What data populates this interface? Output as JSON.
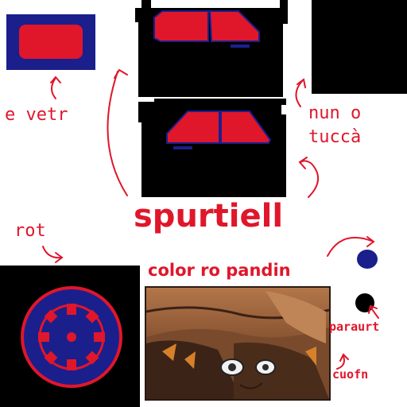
{
  "labels": {
    "glass": "e vetr",
    "dont_touch_line1": "nun o",
    "dont_touch_line2": "tuccà",
    "mirrors": "spurtiell",
    "wheel": "rot",
    "panel_color": "color ro pandin",
    "bumper": "paraurt",
    "cushion": "cuofn"
  },
  "colors": {
    "body_red": "#e0162b",
    "outline_blue": "#1a1f8c",
    "background_black": "#000000",
    "label_red": "#e0162b"
  }
}
